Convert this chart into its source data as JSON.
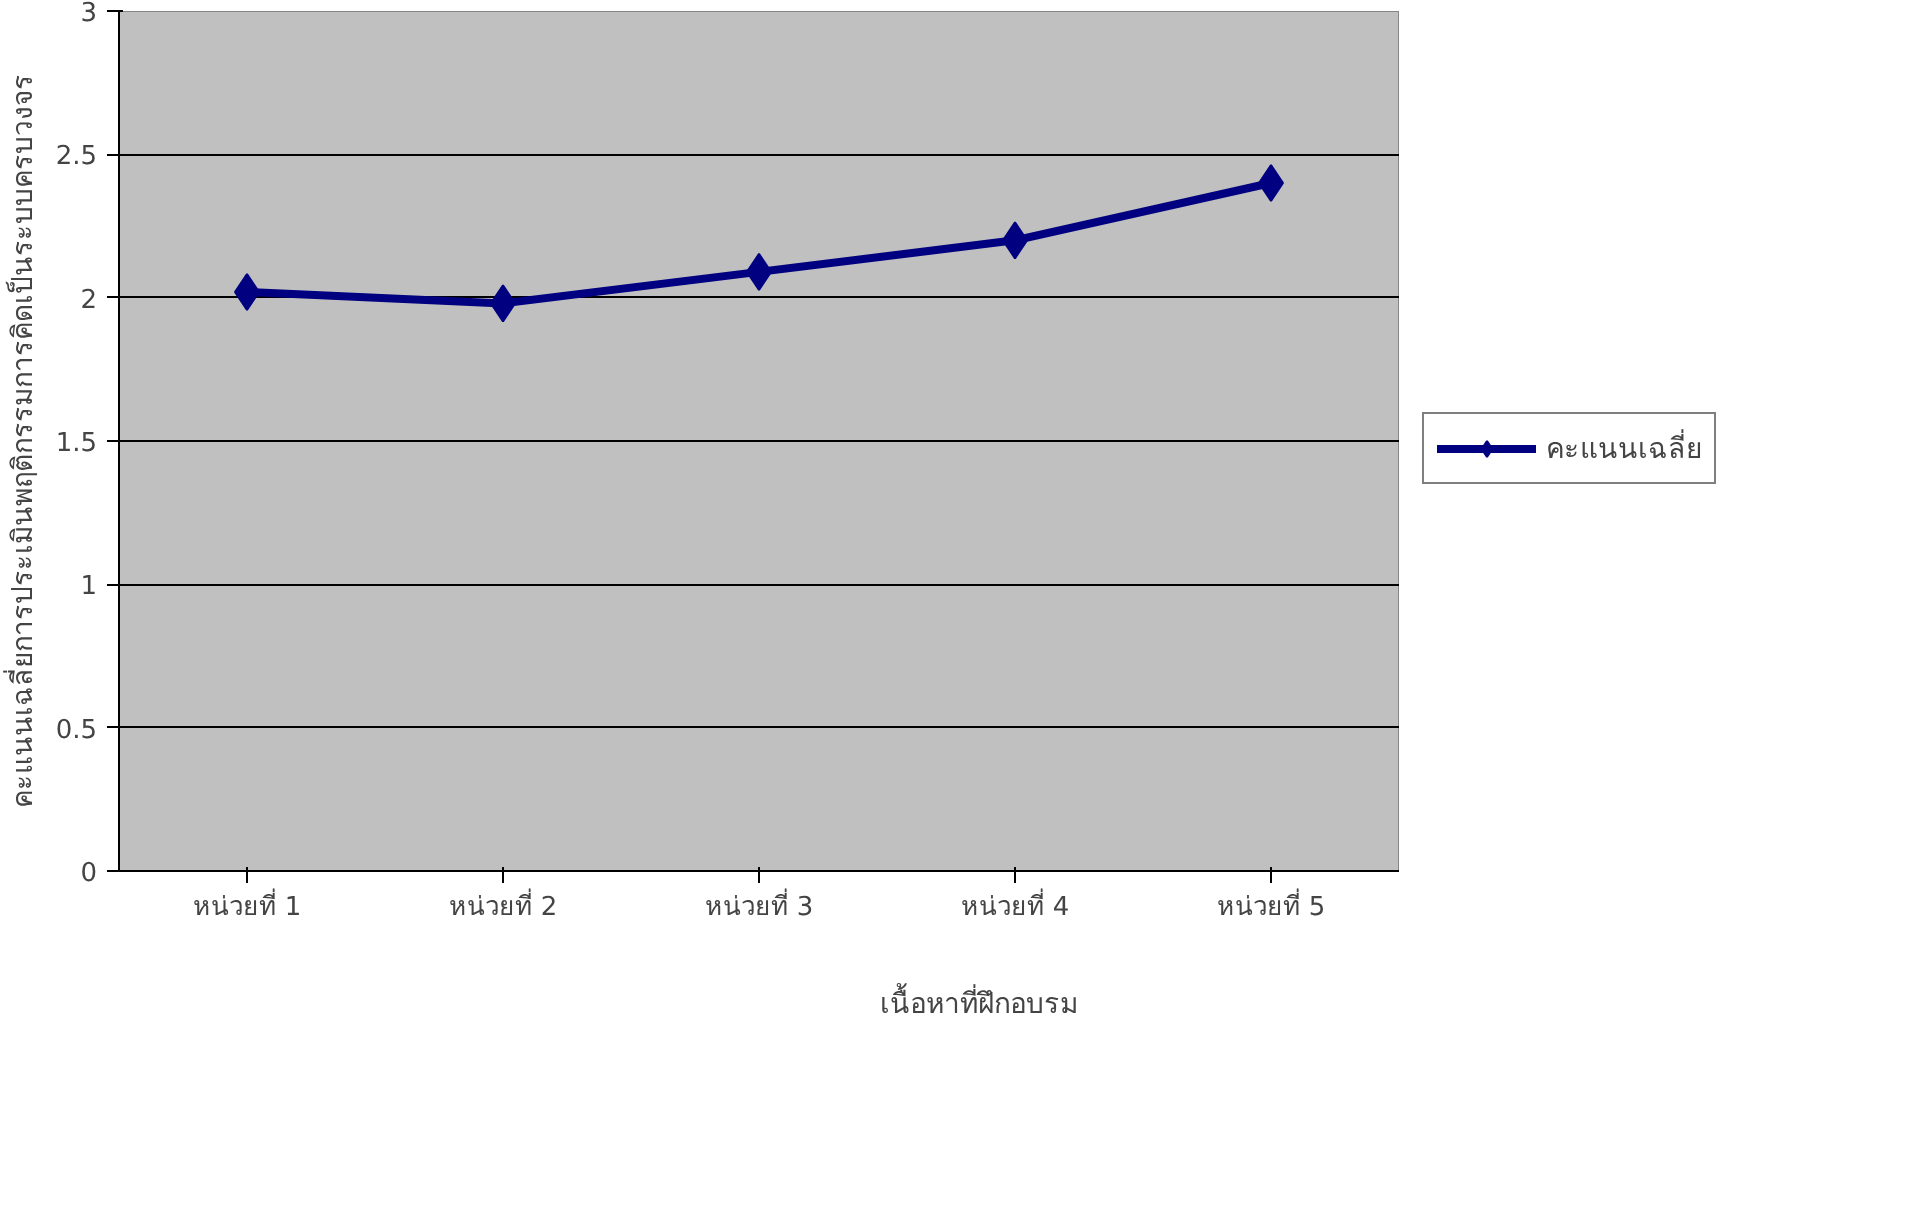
{
  "chart_data": {
    "type": "line",
    "xlabel": "เนื้อหาที่ฝึกอบรม",
    "ylabel": "คะแนนเฉลี่ยการประเมินพฤติกรรมการคิดเป็นระบบครบวงจร",
    "categories": [
      "หน่วยที่ 1",
      "หน่วยที่ 2",
      "หน่วยที่ 3",
      "หน่วยที่ 4",
      "หน่วยที่ 5"
    ],
    "series": [
      {
        "name": "คะแนนเฉลี่ย",
        "color": "#000080",
        "values": [
          2.02,
          1.98,
          2.09,
          2.2,
          2.4
        ]
      }
    ],
    "ylim": [
      0,
      3
    ],
    "yticks": [
      0,
      0.5,
      1,
      1.5,
      2,
      2.5,
      3
    ],
    "grid": "y",
    "legend": "right",
    "marker": "diamond",
    "line_style": "solid"
  }
}
